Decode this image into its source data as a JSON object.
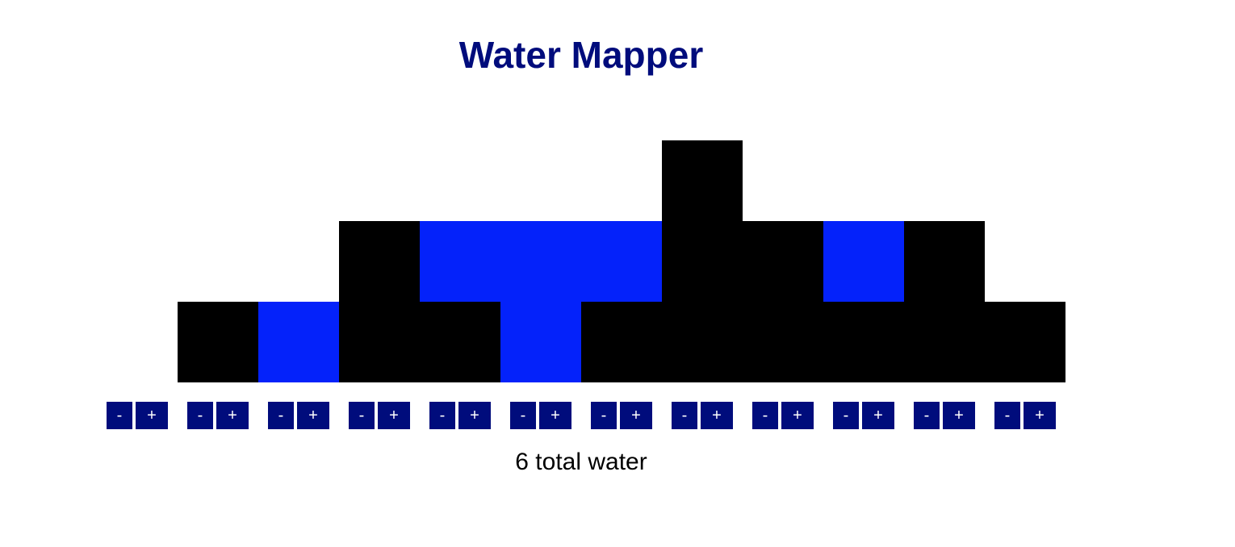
{
  "app": {
    "title": "Water Mapper"
  },
  "colors": {
    "title": "#000c7c",
    "wall": "#000000",
    "water": "#0422fa",
    "button_bg": "#000c7c",
    "button_text": "#ffffff",
    "background": "#ffffff"
  },
  "map": {
    "max_height": 3,
    "heights": [
      0,
      1,
      0,
      2,
      1,
      0,
      1,
      3,
      2,
      1,
      2,
      1
    ],
    "water": [
      0,
      0,
      1,
      0,
      1,
      2,
      1,
      0,
      0,
      1,
      0,
      0
    ]
  },
  "controls": {
    "decrement_label": "-",
    "increment_label": "+"
  },
  "summary": {
    "total_text": "6 total water"
  }
}
